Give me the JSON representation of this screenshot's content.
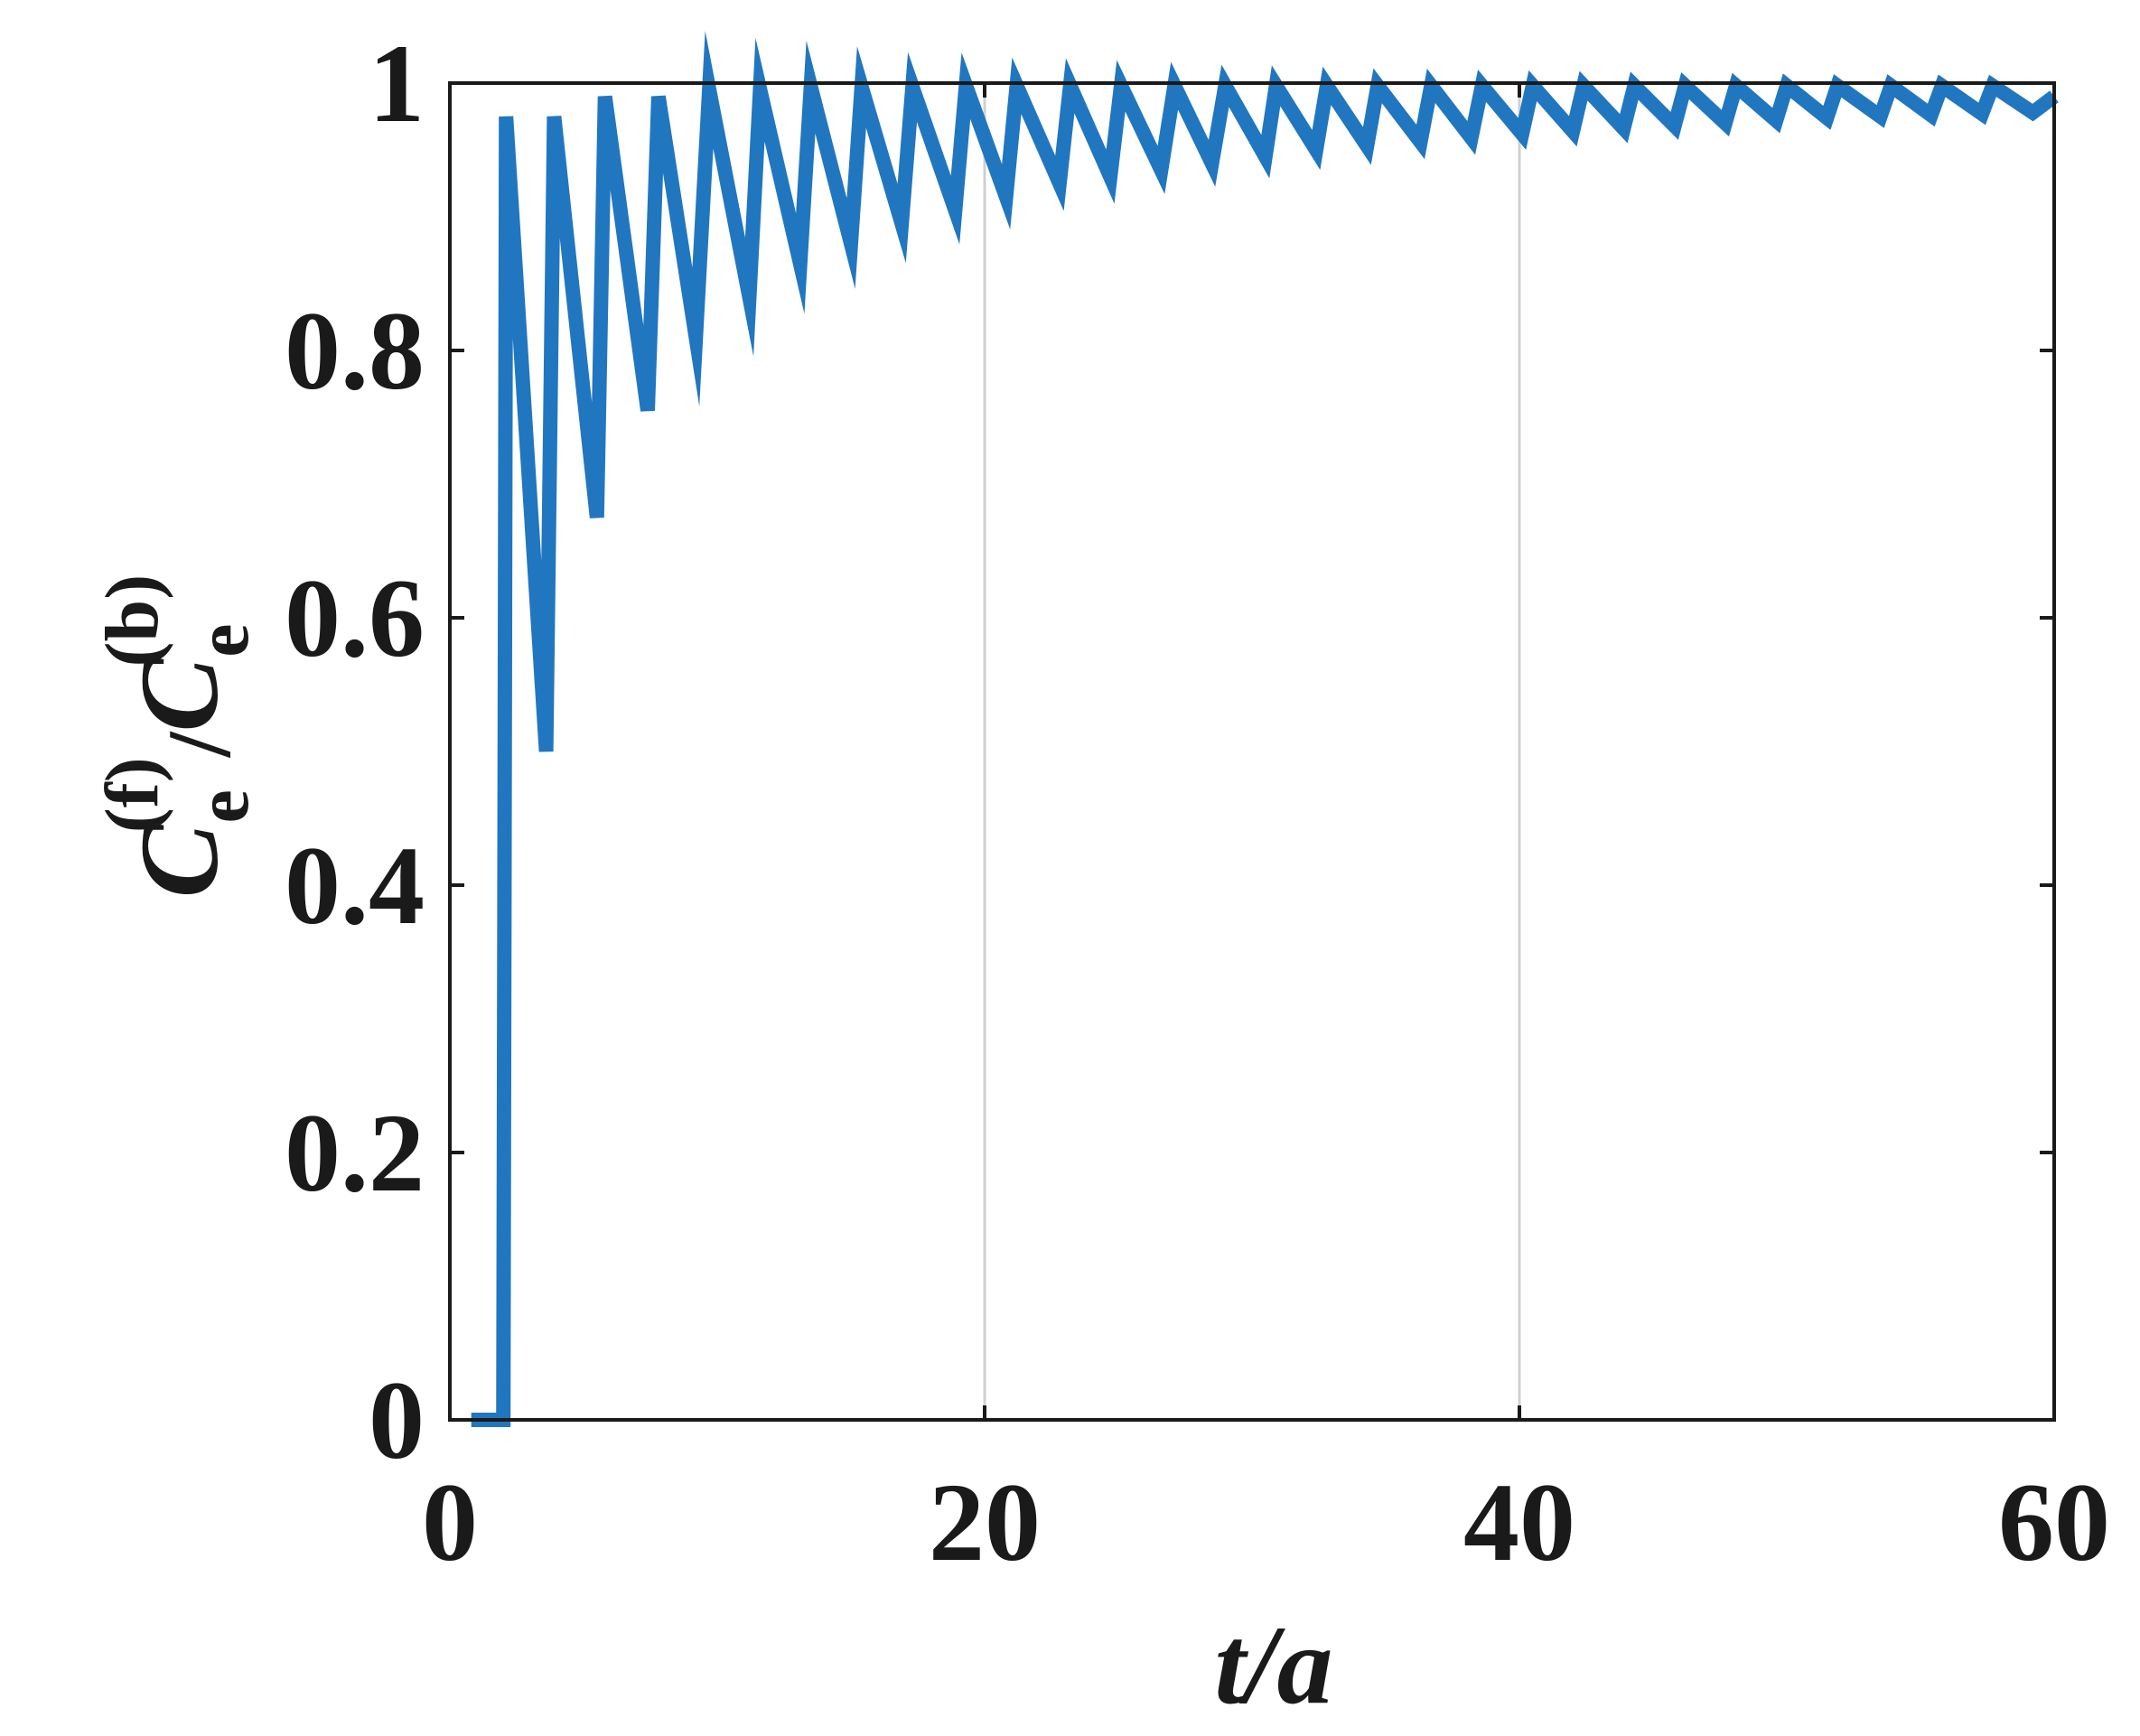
{
  "chart_data": {
    "type": "line",
    "xlabel": "t/a",
    "ylabel": {
      "main1": "C",
      "sub1": "e",
      "sup1": "(f)",
      "slash": "/",
      "main2": "C",
      "sub2": "e",
      "sup2": "(b)"
    },
    "xlim": [
      0,
      60
    ],
    "ylim": [
      0,
      1
    ],
    "xticks": [
      0,
      20,
      40,
      60
    ],
    "xtick_labels": [
      "0",
      "20",
      "40",
      "60"
    ],
    "yticks": [
      0,
      0.2,
      0.4,
      0.6,
      0.8,
      1
    ],
    "ytick_labels": [
      "0",
      "0.2",
      "0.4",
      "0.6",
      "0.8",
      "1"
    ],
    "grid": "vertical",
    "line_color": "#2176c0",
    "grid_color": "#d0d0d0",
    "series": [
      {
        "x": [
          0.8,
          2.0,
          2.1,
          3.6,
          3.9,
          5.5,
          5.8,
          7.4,
          7.8,
          9.2,
          9.7,
          11.2,
          11.6,
          13.1,
          13.5,
          15.0,
          15.4,
          16.9,
          17.3,
          18.9,
          19.3,
          20.8,
          21.2,
          22.8,
          23.2,
          24.7,
          25.1,
          26.6,
          27.1,
          28.5,
          29.0,
          30.5,
          30.9,
          32.4,
          32.8,
          34.3,
          34.7,
          36.3,
          36.7,
          38.2,
          38.6,
          40.1,
          40.5,
          42.0,
          42.4,
          43.9,
          44.3,
          45.8,
          46.2,
          47.7,
          48.1,
          49.6,
          50.0,
          51.5,
          51.9,
          53.5,
          53.9,
          55.4,
          55.8,
          57.3,
          57.7,
          59.2,
          60.0
        ],
        "y": [
          0,
          0,
          0.975,
          0.5,
          0.975,
          0.675,
          0.99,
          0.755,
          0.99,
          0.81,
          0.995,
          0.84,
          0.995,
          0.865,
          0.997,
          0.88,
          0.997,
          0.895,
          0.997,
          0.905,
          0.998,
          0.915,
          0.998,
          0.925,
          0.998,
          0.93,
          0.998,
          0.935,
          0.998,
          0.94,
          0.998,
          0.945,
          0.998,
          0.95,
          0.998,
          0.953,
          0.998,
          0.956,
          0.998,
          0.959,
          0.998,
          0.962,
          0.998,
          0.964,
          0.998,
          0.966,
          0.998,
          0.968,
          0.998,
          0.97,
          0.998,
          0.972,
          0.998,
          0.974,
          0.998,
          0.975,
          0.998,
          0.976,
          0.998,
          0.977,
          0.998,
          0.978,
          0.99
        ]
      }
    ]
  }
}
